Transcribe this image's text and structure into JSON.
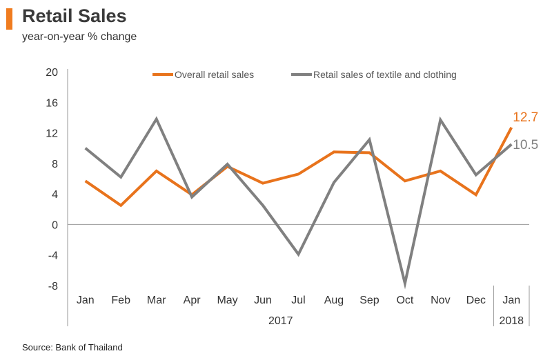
{
  "header": {
    "title": "Retail Sales",
    "subtitle": "year-on-year % change",
    "accent_color": "#f07c1f"
  },
  "footer": {
    "source": "Source: Bank  of Thailand"
  },
  "chart_data": {
    "type": "line",
    "title": "Retail Sales",
    "subtitle": "year-on-year % change",
    "categories": [
      "Jan",
      "Feb",
      "Mar",
      "Apr",
      "May",
      "Jun",
      "Jul",
      "Aug",
      "Sep",
      "Oct",
      "Nov",
      "Dec",
      "Jan"
    ],
    "year_groups": [
      {
        "label": "2017",
        "from": 0,
        "to": 11
      },
      {
        "label": "2018",
        "from": 12,
        "to": 12
      }
    ],
    "ylim": [
      -8,
      20
    ],
    "yticks": [
      -8,
      -4,
      0,
      4,
      8,
      12,
      16,
      20
    ],
    "grid": false,
    "legend_position": "top",
    "series": [
      {
        "name": "Overall retail sales",
        "color": "#e8731c",
        "values": [
          5.7,
          2.5,
          7.0,
          3.9,
          7.6,
          5.4,
          6.6,
          9.5,
          9.4,
          5.7,
          7.0,
          3.9,
          12.7
        ],
        "end_label": "12.7"
      },
      {
        "name": "Retail sales of textile and clothing",
        "color": "#808080",
        "values": [
          10.0,
          6.2,
          13.8,
          3.6,
          7.9,
          2.5,
          -3.9,
          5.5,
          11.1,
          -7.7,
          13.7,
          6.5,
          10.5
        ],
        "end_label": "10.5"
      }
    ]
  }
}
